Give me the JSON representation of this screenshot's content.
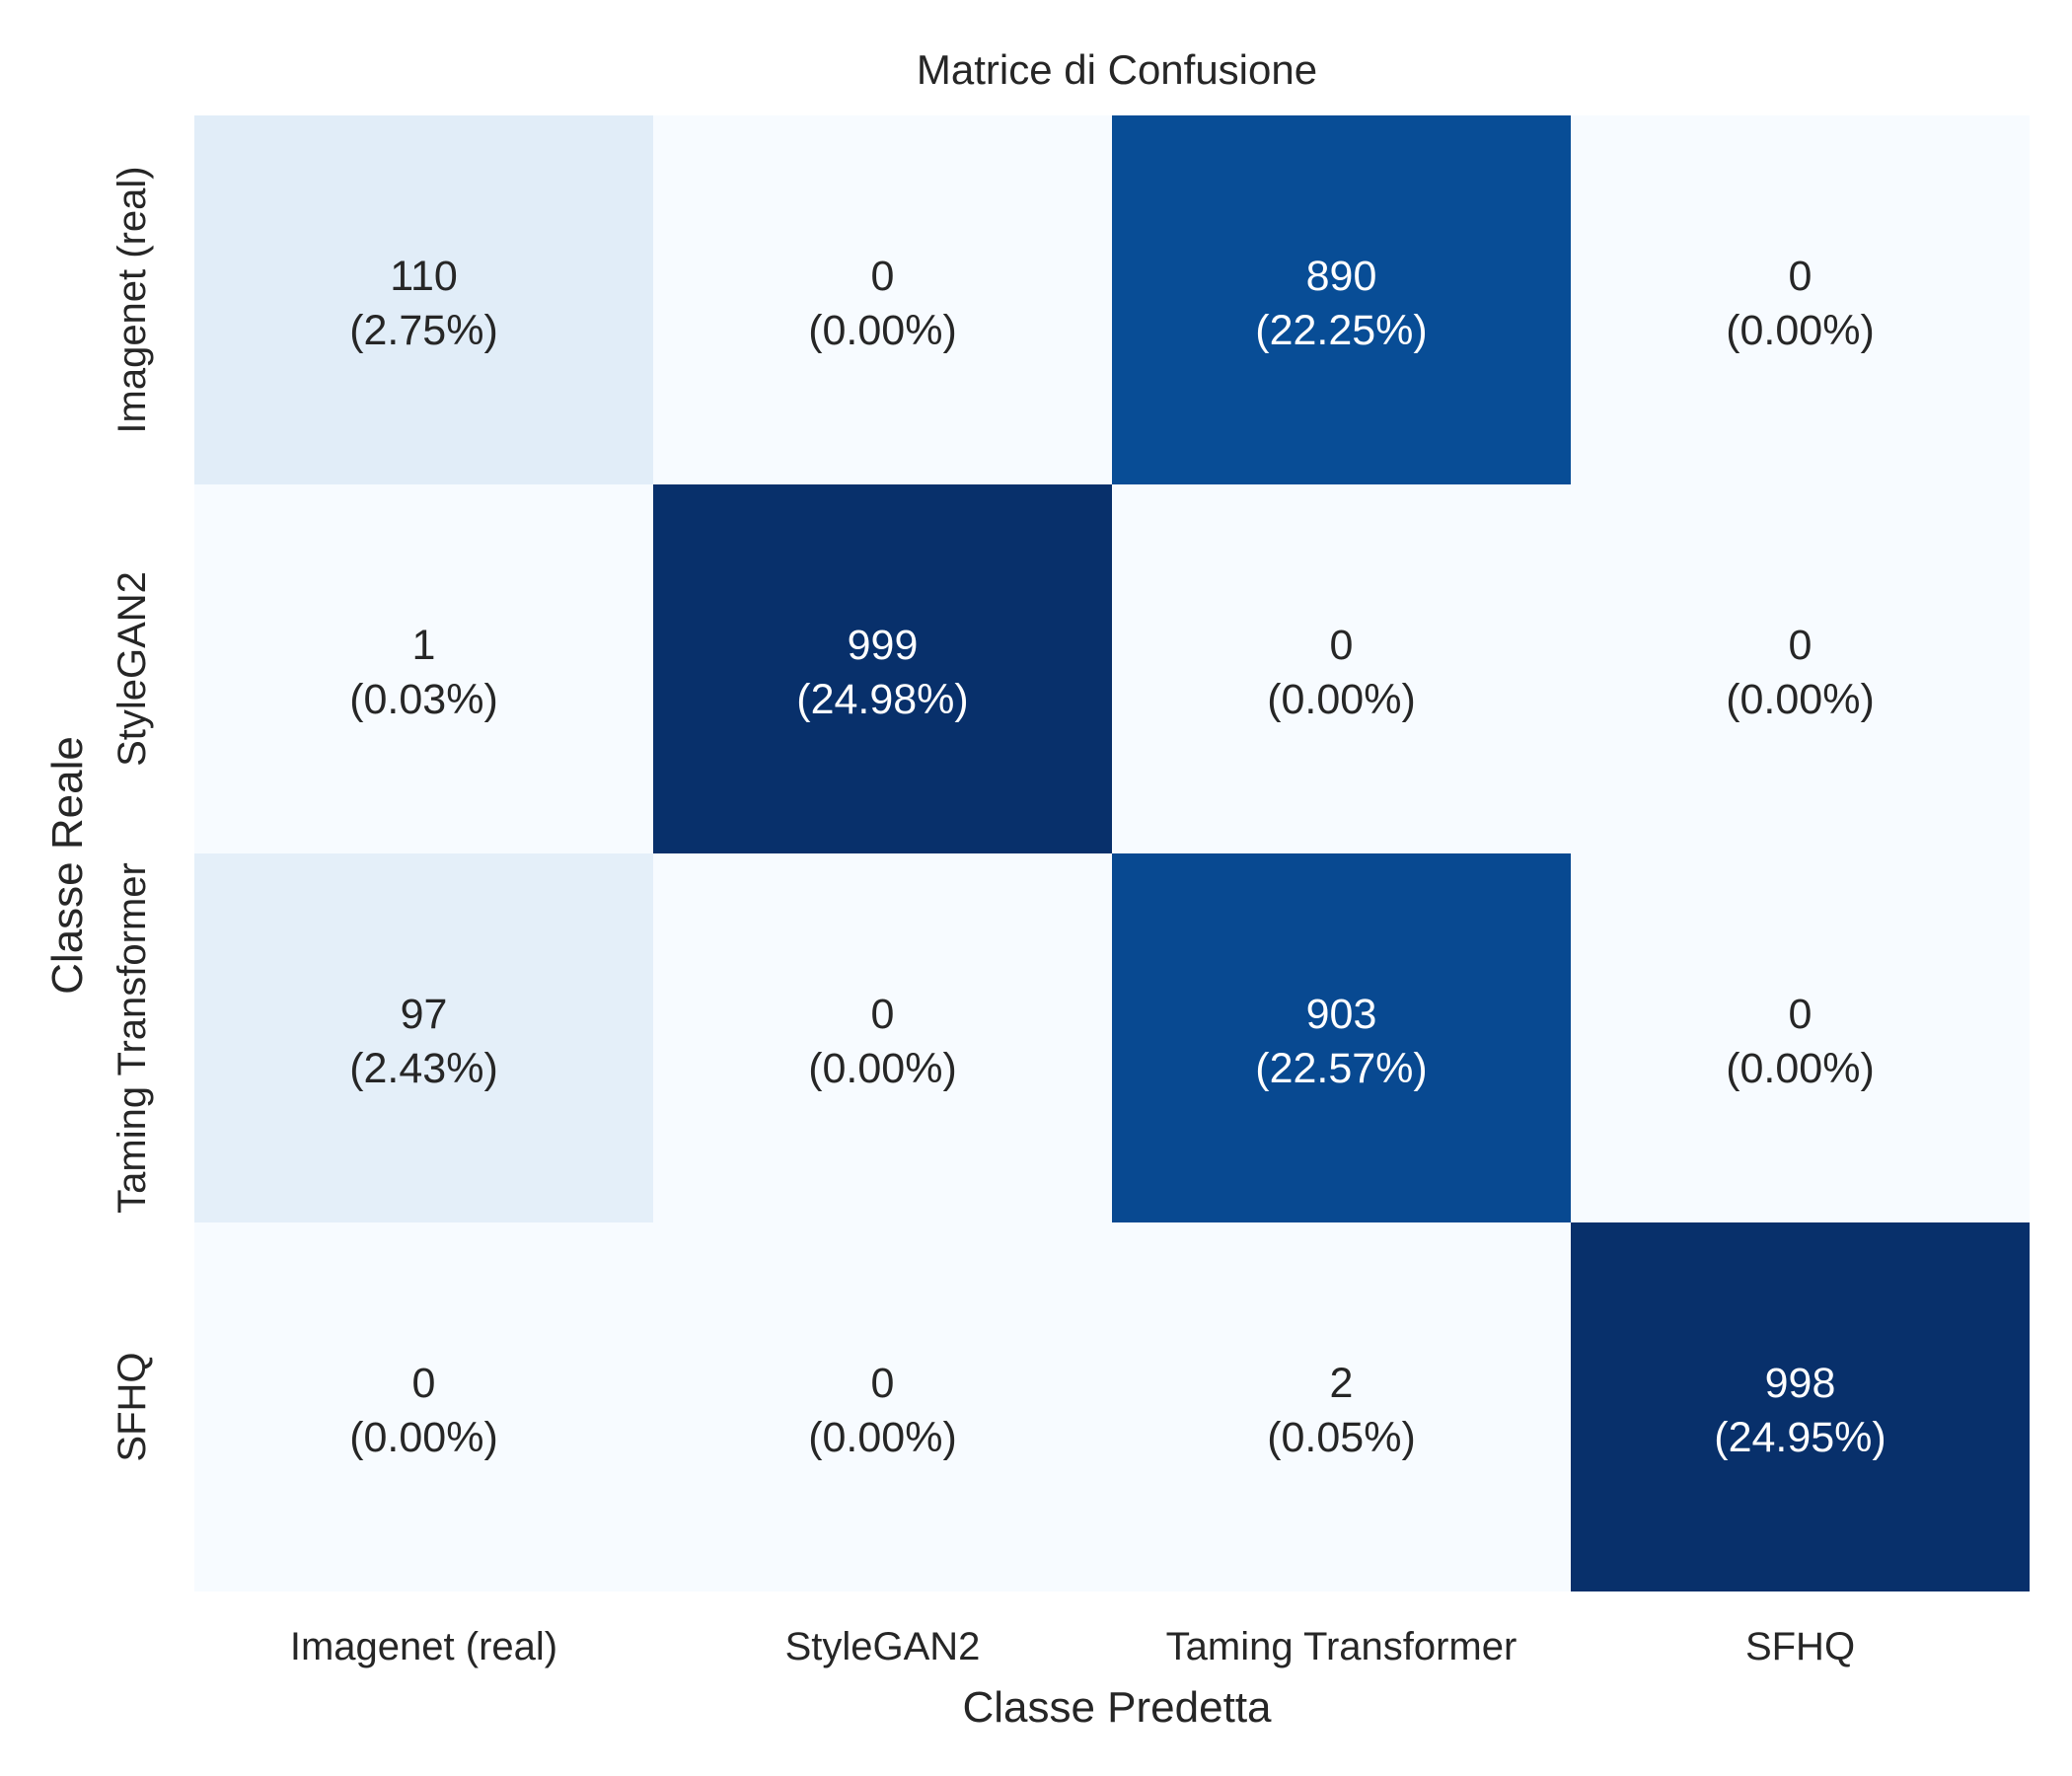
{
  "chart_data": {
    "type": "heatmap",
    "title": "Matrice di Confusione",
    "xlabel": "Classe Predetta",
    "ylabel": "Classe Reale",
    "x_categories": [
      "Imagenet (real)",
      "StyleGAN2",
      "Taming Transformer",
      "SFHQ"
    ],
    "y_categories": [
      "Imagenet (real)",
      "StyleGAN2",
      "Taming Transformer",
      "SFHQ"
    ],
    "values": [
      [
        110,
        0,
        890,
        0
      ],
      [
        1,
        999,
        0,
        0
      ],
      [
        97,
        0,
        903,
        0
      ],
      [
        0,
        0,
        2,
        998
      ]
    ],
    "percent_labels": [
      [
        "(2.75%)",
        "(0.00%)",
        "(22.25%)",
        "(0.00%)"
      ],
      [
        "(0.03%)",
        "(24.98%)",
        "(0.00%)",
        "(0.00%)"
      ],
      [
        "(2.43%)",
        "(0.00%)",
        "(22.57%)",
        "(0.00%)"
      ],
      [
        "(0.00%)",
        "(0.00%)",
        "(0.05%)",
        "(24.95%)"
      ]
    ],
    "colormap": "Blues",
    "colorbar": false,
    "grid": false
  }
}
